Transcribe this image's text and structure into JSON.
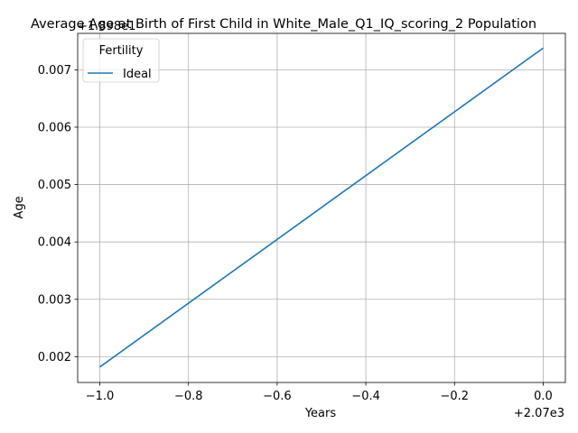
{
  "chart_data": {
    "type": "line",
    "title": "Average Age at Birth of First Child in White_Male_Q1_IQ_scoring_2 Population",
    "xlabel": "Years",
    "ylabel": "Age",
    "x_offset_label": "+2.07e3",
    "y_offset_label": "+1.898e1",
    "x": [
      -1.0,
      0.0
    ],
    "xlim": [
      -1.05,
      0.05
    ],
    "ylim": [
      0.00155,
      0.007635
    ],
    "x_ticks": [
      -1.0,
      -0.8,
      -0.6,
      -0.4,
      -0.2,
      0.0
    ],
    "x_tick_labels": [
      "−1.0",
      "−0.8",
      "−0.6",
      "−0.4",
      "−0.2",
      "0.0"
    ],
    "y_ticks": [
      0.002,
      0.003,
      0.004,
      0.005,
      0.006,
      0.007
    ],
    "y_tick_labels": [
      "0.002",
      "0.003",
      "0.004",
      "0.005",
      "0.006",
      "0.007"
    ],
    "grid": true,
    "legend_title": "Fertility",
    "legend_position": "top-left",
    "series": [
      {
        "name": "Ideal",
        "color": "#1f77b4",
        "values": [
          0.00182,
          0.00738
        ]
      }
    ]
  }
}
